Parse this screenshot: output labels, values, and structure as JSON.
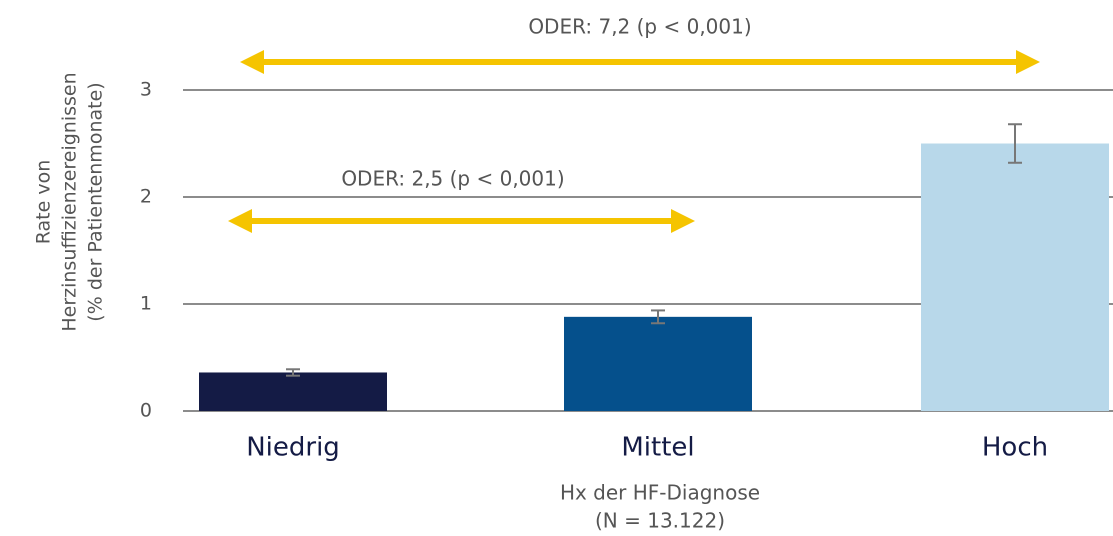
{
  "chart_data": {
    "type": "bar",
    "categories": [
      "Niedrig",
      "Mittel",
      "Hoch"
    ],
    "values": [
      0.36,
      0.88,
      2.5
    ],
    "errors": [
      0.03,
      0.06,
      0.18
    ],
    "colors": [
      "#141b45",
      "#05508c",
      "#b8d8ea"
    ],
    "x_label": [
      "Hx der HF-Diagnose",
      "(N = 13.122)"
    ],
    "y_label": [
      "Rate von",
      "Herzinsuffizienzereignissen",
      "(% der Patientenmonate)"
    ],
    "ylim": [
      0,
      3
    ],
    "yticks": [
      0,
      1,
      2,
      3
    ],
    "grid": true,
    "annotations": [
      "ODER: 7,2 (p < 0,001)",
      "ODER: 2,5 (p < 0,001)"
    ]
  }
}
